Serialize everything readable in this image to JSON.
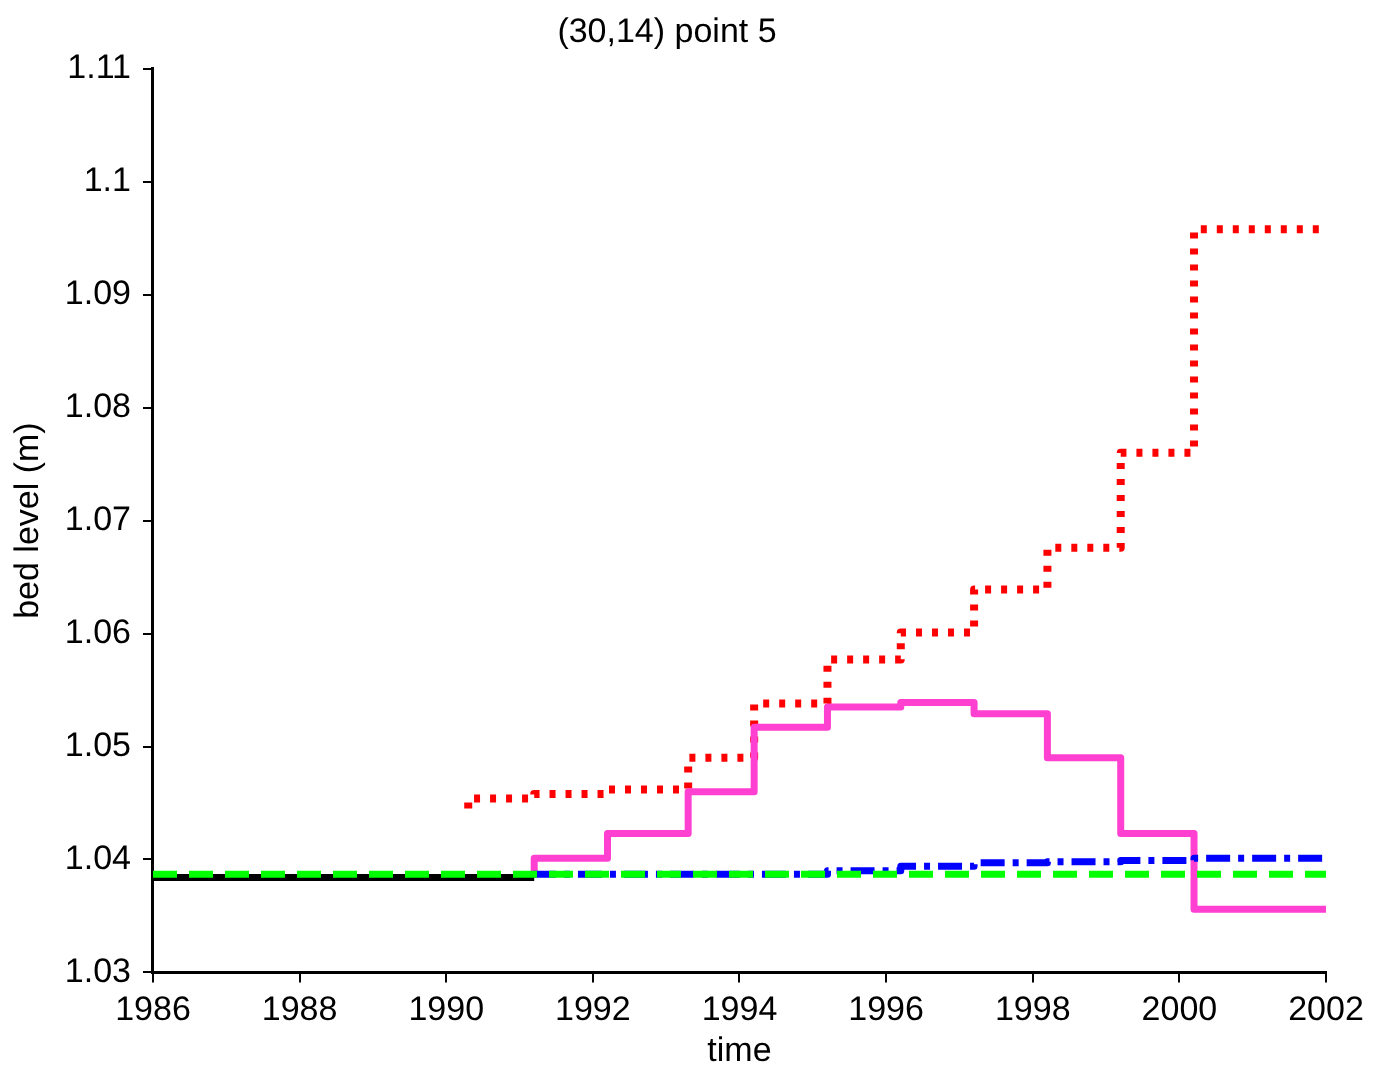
{
  "chart_data": {
    "type": "step",
    "title": "(30,14) point 5",
    "xlabel": "time",
    "ylabel": "bed level (m)",
    "xlim": [
      1986,
      2002
    ],
    "xticks": [
      1986,
      1988,
      1990,
      1992,
      1994,
      1996,
      1998,
      2000,
      2002
    ],
    "ylim": [
      1.03,
      1.11
    ],
    "yticks": [
      1.03,
      1.04,
      1.05,
      1.06,
      1.07,
      1.08,
      1.09,
      1.1,
      1.11
    ],
    "grid": false,
    "legend": false,
    "marker": "none",
    "series": [
      {
        "color": "#00ff00",
        "line_style": "dashed",
        "x": [
          1986,
          2002
        ],
        "values": [
          1.0387,
          1.0387
        ]
      },
      {
        "color": "#000000",
        "line_style": "solid",
        "x": [
          1986,
          1991.2
        ],
        "values": [
          1.0384,
          1.0384
        ]
      },
      {
        "color": "#0000ff",
        "line_style": "dashdot",
        "x": [
          1991.2,
          1995.2,
          1996.2,
          1997.2,
          1998.2,
          1999.2,
          2000.2,
          2002
        ],
        "values": [
          1.0385,
          1.0387,
          1.039,
          1.0394,
          1.0397,
          1.0398,
          1.0399,
          1.0401
        ]
      },
      {
        "color": "#ff40d0",
        "line_style": "solid",
        "x": [
          1991.2,
          1992.2,
          1993.3,
          1994.2,
          1995.2,
          1996.2,
          1997.2,
          1998.2,
          1999.2,
          2000.2,
          2001.2,
          2002
        ],
        "values": [
          1.0389,
          1.0401,
          1.0423,
          1.046,
          1.0517,
          1.0535,
          1.0539,
          1.0529,
          1.049,
          1.0423,
          1.0356,
          1.0356
        ]
      },
      {
        "color": "#ff0000",
        "line_style": "dotted",
        "x": [
          1990.3,
          1991.2,
          1992.2,
          1993.3,
          1994.2,
          1995.2,
          1996.2,
          1997.2,
          1998.2,
          1999.2,
          2000.2,
          2001.2,
          2002
        ],
        "values": [
          1.0445,
          1.0454,
          1.0458,
          1.0462,
          1.049,
          1.0538,
          1.0577,
          1.0601,
          1.0639,
          1.0676,
          1.076,
          1.0958,
          1.0958
        ]
      }
    ]
  }
}
